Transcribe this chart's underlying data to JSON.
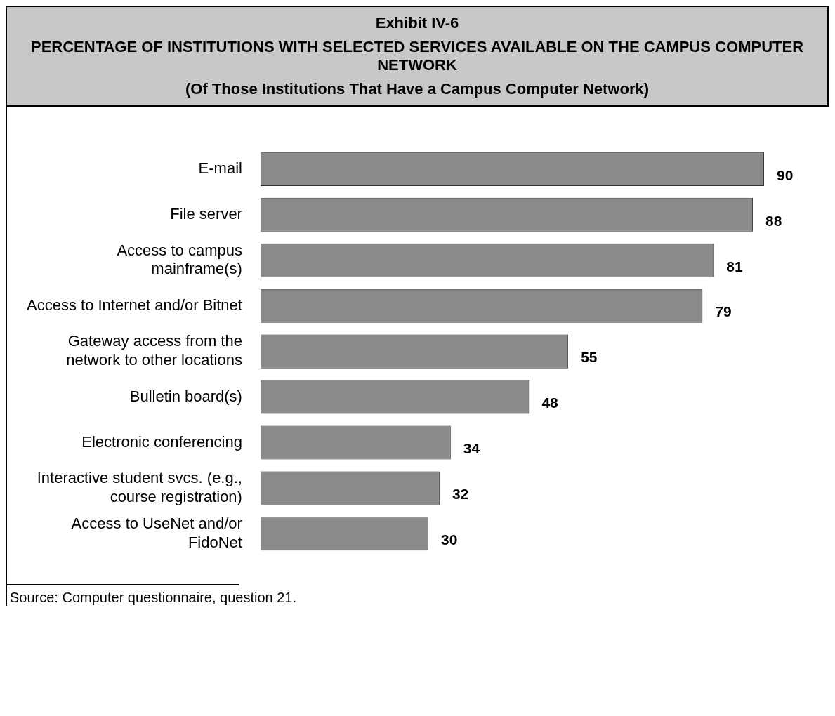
{
  "chart_data": {
    "type": "bar",
    "orientation": "horizontal",
    "title": "Exhibit IV-6",
    "subtitle": "PERCENTAGE OF INSTITUTIONS WITH SELECTED SERVICES AVAILABLE ON THE CAMPUS COMPUTER NETWORK",
    "annotations": [
      "(Of Those Institutions That Have a Campus Computer Network)",
      "Source: Computer questionnaire, question 21."
    ],
    "categories": [
      "E-mail",
      "File server",
      "Access to campus mainframe(s)",
      "Access to Internet and/or Bitnet",
      "Gateway access from the network to other locations",
      "Bulletin board(s)",
      "Electronic conferencing",
      "Interactive student svcs. (e.g., course registration)",
      "Access to UseNet and/or FidoNet"
    ],
    "values": [
      90,
      88,
      81,
      79,
      55,
      48,
      34,
      32,
      30
    ],
    "color": "#8a8a8a",
    "data_labels": true
  }
}
